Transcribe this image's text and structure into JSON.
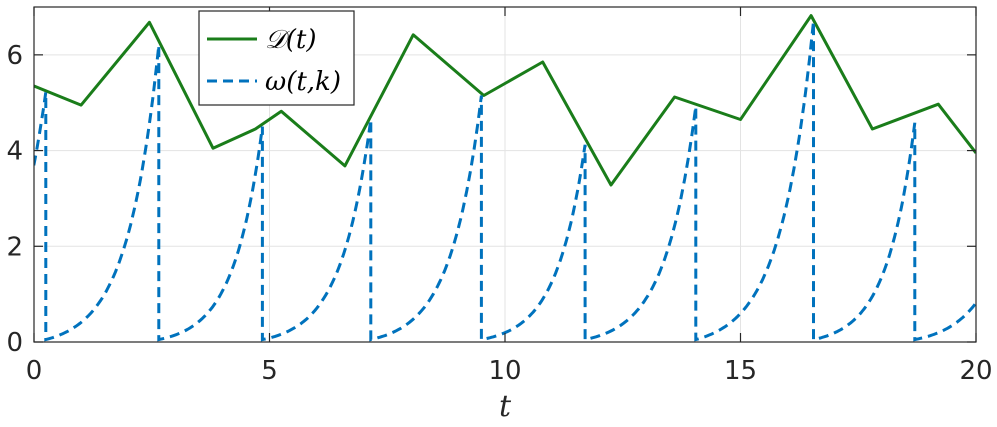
{
  "chart_data": {
    "type": "line",
    "xlabel": "t",
    "ylabel": "",
    "xlim": [
      0,
      20
    ],
    "ylim": [
      0,
      7
    ],
    "xticks": [
      0,
      5,
      10,
      15,
      20
    ],
    "yticks": [
      0,
      2,
      4,
      6
    ],
    "grid": true,
    "legend_position": "top-left",
    "series": [
      {
        "name": "𝒟(t)",
        "style": "solid",
        "color": "#1a7d1a",
        "points": [
          [
            0,
            5.35
          ],
          [
            1.0,
            4.95
          ],
          [
            2.45,
            6.68
          ],
          [
            3.8,
            4.05
          ],
          [
            4.7,
            4.45
          ],
          [
            5.25,
            4.82
          ],
          [
            6.6,
            3.68
          ],
          [
            8.05,
            6.42
          ],
          [
            9.55,
            5.15
          ],
          [
            10.8,
            5.85
          ],
          [
            12.25,
            3.28
          ],
          [
            13.6,
            5.12
          ],
          [
            15.0,
            4.65
          ],
          [
            16.5,
            6.82
          ],
          [
            17.8,
            4.45
          ],
          [
            19.2,
            4.97
          ],
          [
            20.0,
            3.95
          ]
        ]
      },
      {
        "name": "ω(t,k)",
        "style": "dashed",
        "color": "#0072bd",
        "segments": [
          {
            "t0": -2.45,
            "t1": 0.25,
            "peak": 5.22
          },
          {
            "t0": 0.25,
            "t1": 2.65,
            "peak": 6.2
          },
          {
            "t0": 2.65,
            "t1": 4.85,
            "peak": 4.5
          },
          {
            "t0": 4.85,
            "t1": 7.15,
            "peak": 4.65
          },
          {
            "t0": 7.15,
            "t1": 9.5,
            "peak": 5.15
          },
          {
            "t0": 9.5,
            "t1": 11.7,
            "peak": 4.12
          },
          {
            "t0": 11.7,
            "t1": 14.05,
            "peak": 4.92
          },
          {
            "t0": 14.05,
            "t1": 16.55,
            "peak": 6.7
          },
          {
            "t0": 16.55,
            "t1": 18.7,
            "peak": 4.58
          },
          {
            "t0": 18.7,
            "t1": 21.15,
            "peak": 4.8
          }
        ]
      }
    ]
  }
}
